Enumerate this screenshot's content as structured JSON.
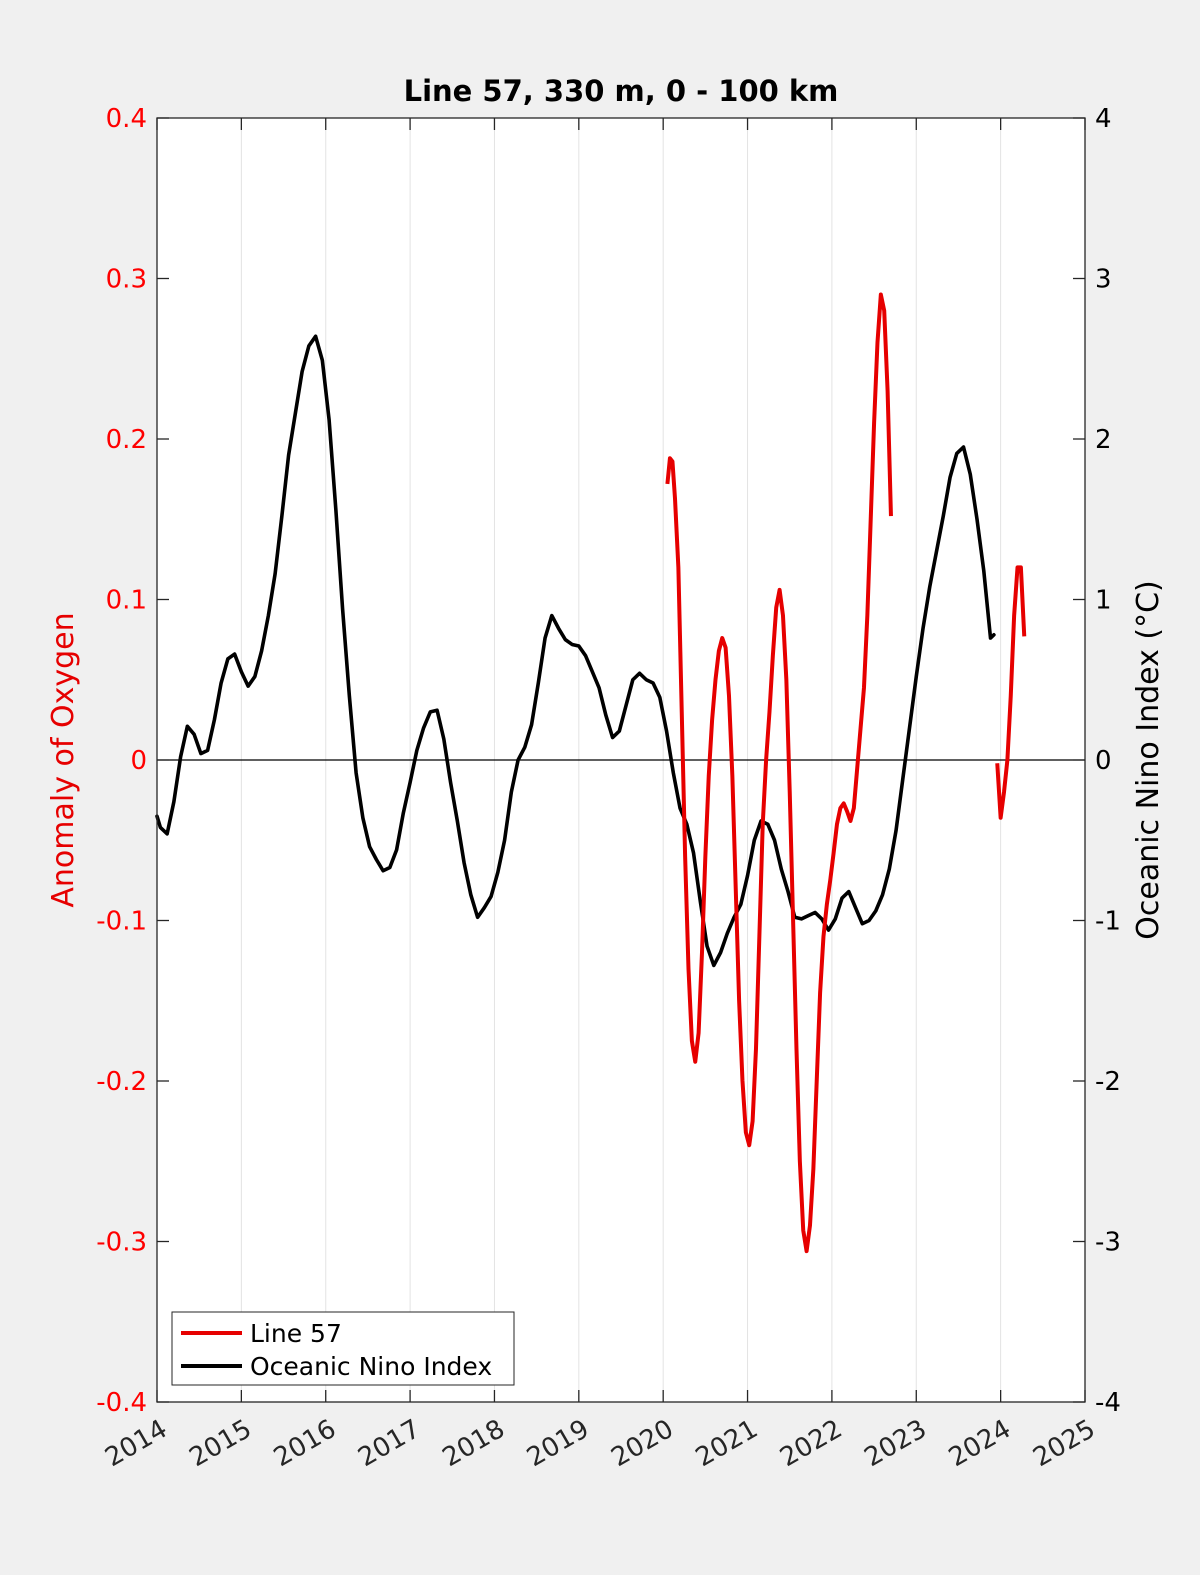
{
  "chart_data": {
    "type": "line",
    "title": "Line 57, 330 m, 0 - 100 km",
    "xlabel": "",
    "ylabel_left": "Anomaly of Oxygen",
    "ylabel_right": "Oceanic Nino Index (°C)",
    "xlim": [
      2014,
      2025
    ],
    "ylim_left": [
      -0.4,
      0.4
    ],
    "ylim_right": [
      -4,
      4
    ],
    "x_ticks": [
      "2014",
      "2015",
      "2016",
      "2017",
      "2018",
      "2019",
      "2020",
      "2021",
      "2022",
      "2023",
      "2024",
      "2025"
    ],
    "y_ticks_left": [
      "-0.4",
      "-0.3",
      "-0.2",
      "-0.1",
      "0",
      "0.1",
      "0.2",
      "0.3",
      "0.4"
    ],
    "y_ticks_right": [
      "-4",
      "-3",
      "-2",
      "-1",
      "0",
      "1",
      "2",
      "3",
      "4"
    ],
    "grid": "vertical",
    "zero_line": true,
    "legend_position": "bottom-left",
    "colors": {
      "left_axis": "#ff0000",
      "right_axis": "#000000",
      "line57": "#e60000",
      "oni": "#000000"
    },
    "series": [
      {
        "name": "Line 57",
        "axis": "left",
        "segments": [
          [
            [
              2020.05,
              0.172
            ],
            [
              2020.08,
              0.188
            ],
            [
              2020.11,
              0.186
            ],
            [
              2020.14,
              0.163
            ],
            [
              2020.18,
              0.12
            ],
            [
              2020.22,
              0.03
            ],
            [
              2020.26,
              -0.06
            ],
            [
              2020.3,
              -0.13
            ],
            [
              2020.34,
              -0.175
            ],
            [
              2020.38,
              -0.188
            ],
            [
              2020.42,
              -0.17
            ],
            [
              2020.46,
              -0.12
            ],
            [
              2020.5,
              -0.06
            ],
            [
              2020.54,
              -0.01
            ],
            [
              2020.58,
              0.025
            ],
            [
              2020.62,
              0.05
            ],
            [
              2020.66,
              0.068
            ],
            [
              2020.7,
              0.076
            ],
            [
              2020.74,
              0.07
            ],
            [
              2020.78,
              0.04
            ],
            [
              2020.82,
              -0.01
            ],
            [
              2020.86,
              -0.08
            ],
            [
              2020.9,
              -0.15
            ],
            [
              2020.94,
              -0.2
            ],
            [
              2020.98,
              -0.232
            ],
            [
              2021.02,
              -0.24
            ],
            [
              2021.06,
              -0.225
            ],
            [
              2021.1,
              -0.18
            ],
            [
              2021.14,
              -0.11
            ],
            [
              2021.18,
              -0.04
            ],
            [
              2021.22,
              0.0
            ],
            [
              2021.26,
              0.03
            ],
            [
              2021.3,
              0.065
            ],
            [
              2021.34,
              0.095
            ],
            [
              2021.38,
              0.106
            ],
            [
              2021.42,
              0.09
            ],
            [
              2021.46,
              0.05
            ],
            [
              2021.5,
              -0.02
            ],
            [
              2021.54,
              -0.1
            ],
            [
              2021.58,
              -0.18
            ],
            [
              2021.62,
              -0.25
            ],
            [
              2021.66,
              -0.293
            ],
            [
              2021.7,
              -0.306
            ],
            [
              2021.74,
              -0.29
            ],
            [
              2021.78,
              -0.255
            ],
            [
              2021.82,
              -0.2
            ],
            [
              2021.86,
              -0.145
            ],
            [
              2021.9,
              -0.11
            ],
            [
              2021.94,
              -0.09
            ],
            [
              2021.98,
              -0.075
            ],
            [
              2022.02,
              -0.058
            ],
            [
              2022.06,
              -0.04
            ],
            [
              2022.1,
              -0.03
            ],
            [
              2022.14,
              -0.027
            ],
            [
              2022.18,
              -0.032
            ],
            [
              2022.22,
              -0.038
            ],
            [
              2022.26,
              -0.03
            ],
            [
              2022.3,
              -0.005
            ],
            [
              2022.34,
              0.02
            ],
            [
              2022.38,
              0.045
            ],
            [
              2022.42,
              0.09
            ],
            [
              2022.46,
              0.15
            ],
            [
              2022.5,
              0.21
            ],
            [
              2022.54,
              0.26
            ],
            [
              2022.58,
              0.29
            ],
            [
              2022.62,
              0.28
            ],
            [
              2022.66,
              0.23
            ],
            [
              2022.7,
              0.152
            ]
          ],
          [
            [
              2023.96,
              -0.002
            ],
            [
              2024.0,
              -0.036
            ],
            [
              2024.04,
              -0.02
            ],
            [
              2024.08,
              0.0
            ],
            [
              2024.12,
              0.04
            ],
            [
              2024.16,
              0.09
            ],
            [
              2024.2,
              0.12
            ],
            [
              2024.24,
              0.12
            ],
            [
              2024.28,
              0.077
            ]
          ]
        ]
      },
      {
        "name": "Oceanic Nino Index",
        "axis": "right",
        "points": [
          [
            2014.0,
            -0.35
          ],
          [
            2014.04,
            -0.42
          ],
          [
            2014.12,
            -0.46
          ],
          [
            2014.2,
            -0.26
          ],
          [
            2014.28,
            0.02
          ],
          [
            2014.36,
            0.21
          ],
          [
            2014.44,
            0.16
          ],
          [
            2014.52,
            0.04
          ],
          [
            2014.6,
            0.06
          ],
          [
            2014.68,
            0.25
          ],
          [
            2014.76,
            0.48
          ],
          [
            2014.84,
            0.63
          ],
          [
            2014.92,
            0.66
          ],
          [
            2015.0,
            0.55
          ],
          [
            2015.08,
            0.46
          ],
          [
            2015.16,
            0.52
          ],
          [
            2015.24,
            0.68
          ],
          [
            2015.32,
            0.9
          ],
          [
            2015.4,
            1.16
          ],
          [
            2015.48,
            1.52
          ],
          [
            2015.56,
            1.9
          ],
          [
            2015.64,
            2.16
          ],
          [
            2015.72,
            2.42
          ],
          [
            2015.8,
            2.58
          ],
          [
            2015.88,
            2.64
          ],
          [
            2015.96,
            2.49
          ],
          [
            2016.04,
            2.12
          ],
          [
            2016.12,
            1.56
          ],
          [
            2016.2,
            0.94
          ],
          [
            2016.28,
            0.4
          ],
          [
            2016.36,
            -0.08
          ],
          [
            2016.44,
            -0.36
          ],
          [
            2016.52,
            -0.54
          ],
          [
            2016.6,
            -0.62
          ],
          [
            2016.68,
            -0.69
          ],
          [
            2016.76,
            -0.67
          ],
          [
            2016.84,
            -0.56
          ],
          [
            2016.92,
            -0.33
          ],
          [
            2017.0,
            -0.14
          ],
          [
            2017.08,
            0.06
          ],
          [
            2017.16,
            0.2
          ],
          [
            2017.24,
            0.3
          ],
          [
            2017.32,
            0.31
          ],
          [
            2017.4,
            0.13
          ],
          [
            2017.48,
            -0.14
          ],
          [
            2017.56,
            -0.38
          ],
          [
            2017.64,
            -0.64
          ],
          [
            2017.72,
            -0.84
          ],
          [
            2017.8,
            -0.98
          ],
          [
            2017.88,
            -0.92
          ],
          [
            2017.96,
            -0.85
          ],
          [
            2018.04,
            -0.7
          ],
          [
            2018.12,
            -0.5
          ],
          [
            2018.2,
            -0.2
          ],
          [
            2018.28,
            0.0
          ],
          [
            2018.36,
            0.08
          ],
          [
            2018.44,
            0.22
          ],
          [
            2018.52,
            0.48
          ],
          [
            2018.6,
            0.76
          ],
          [
            2018.68,
            0.9
          ],
          [
            2018.76,
            0.82
          ],
          [
            2018.84,
            0.75
          ],
          [
            2018.92,
            0.72
          ],
          [
            2019.0,
            0.71
          ],
          [
            2019.08,
            0.65
          ],
          [
            2019.16,
            0.55
          ],
          [
            2019.24,
            0.45
          ],
          [
            2019.32,
            0.28
          ],
          [
            2019.4,
            0.14
          ],
          [
            2019.48,
            0.18
          ],
          [
            2019.56,
            0.34
          ],
          [
            2019.64,
            0.5
          ],
          [
            2019.72,
            0.54
          ],
          [
            2019.8,
            0.5
          ],
          [
            2019.88,
            0.48
          ],
          [
            2019.96,
            0.39
          ],
          [
            2020.04,
            0.18
          ],
          [
            2020.12,
            -0.08
          ],
          [
            2020.2,
            -0.3
          ],
          [
            2020.28,
            -0.4
          ],
          [
            2020.36,
            -0.58
          ],
          [
            2020.44,
            -0.88
          ],
          [
            2020.52,
            -1.16
          ],
          [
            2020.6,
            -1.28
          ],
          [
            2020.68,
            -1.2
          ],
          [
            2020.76,
            -1.08
          ],
          [
            2020.84,
            -0.98
          ],
          [
            2020.92,
            -0.9
          ],
          [
            2021.0,
            -0.72
          ],
          [
            2021.08,
            -0.5
          ],
          [
            2021.16,
            -0.38
          ],
          [
            2021.24,
            -0.4
          ],
          [
            2021.32,
            -0.5
          ],
          [
            2021.4,
            -0.68
          ],
          [
            2021.48,
            -0.82
          ],
          [
            2021.56,
            -0.98
          ],
          [
            2021.64,
            -0.99
          ],
          [
            2021.72,
            -0.97
          ],
          [
            2021.8,
            -0.95
          ],
          [
            2021.88,
            -0.99
          ],
          [
            2021.96,
            -1.06
          ],
          [
            2022.04,
            -0.99
          ],
          [
            2022.12,
            -0.86
          ],
          [
            2022.2,
            -0.82
          ],
          [
            2022.28,
            -0.92
          ],
          [
            2022.36,
            -1.02
          ],
          [
            2022.44,
            -1.0
          ],
          [
            2022.52,
            -0.94
          ],
          [
            2022.6,
            -0.84
          ],
          [
            2022.68,
            -0.68
          ],
          [
            2022.76,
            -0.44
          ],
          [
            2022.84,
            -0.12
          ],
          [
            2022.92,
            0.2
          ],
          [
            2023.0,
            0.52
          ],
          [
            2023.08,
            0.82
          ],
          [
            2023.16,
            1.08
          ],
          [
            2023.24,
            1.3
          ],
          [
            2023.32,
            1.52
          ],
          [
            2023.4,
            1.76
          ],
          [
            2023.48,
            1.91
          ],
          [
            2023.56,
            1.95
          ],
          [
            2023.64,
            1.78
          ],
          [
            2023.72,
            1.5
          ],
          [
            2023.8,
            1.18
          ],
          [
            2023.88,
            0.76
          ],
          [
            2023.92,
            0.78
          ]
        ]
      }
    ]
  }
}
